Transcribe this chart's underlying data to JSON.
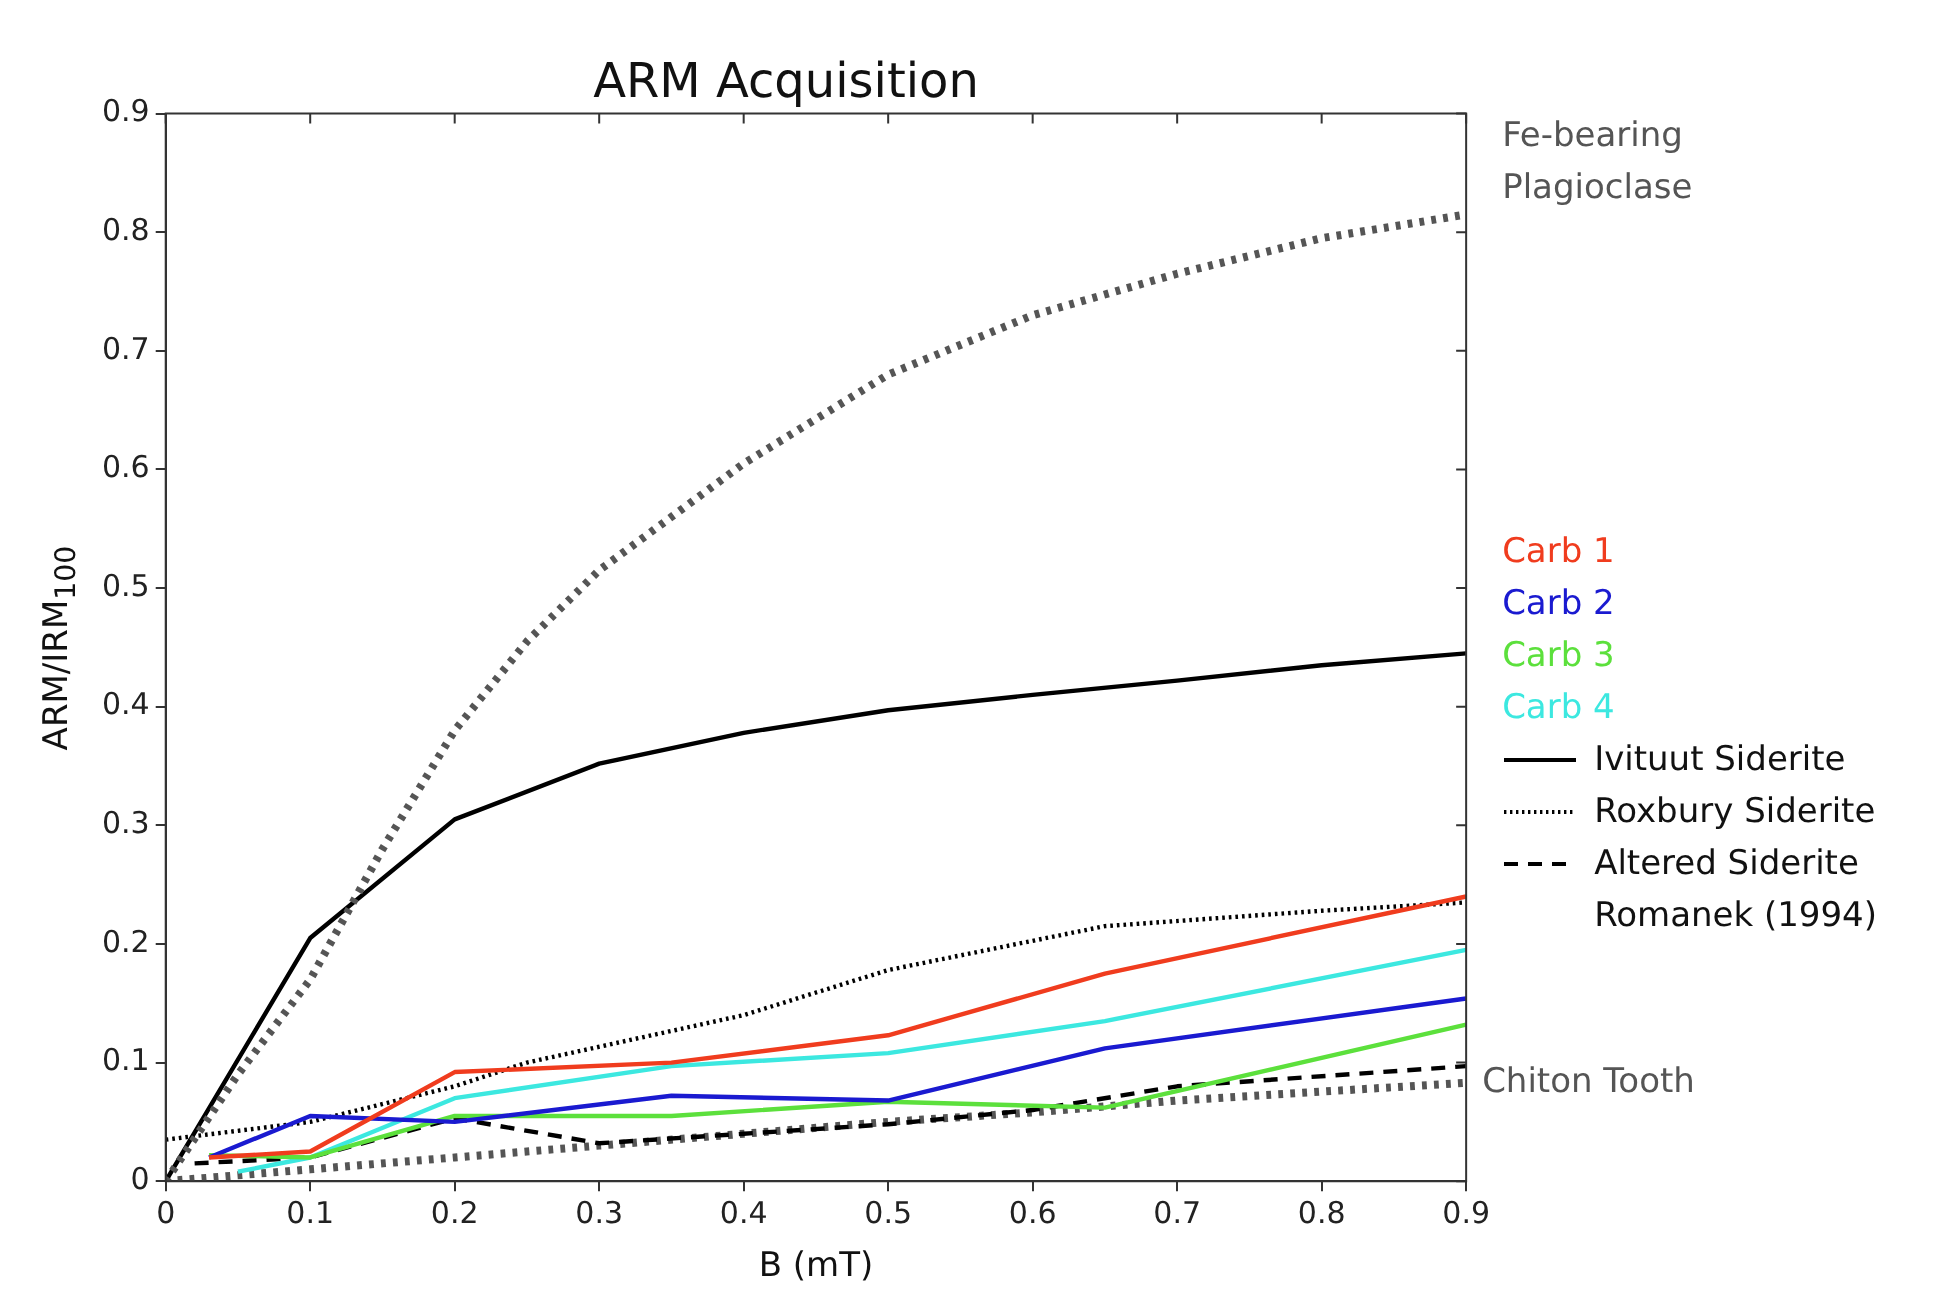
{
  "chart_data": {
    "type": "line",
    "title": "ARM Acquisition",
    "xlabel": "B (mT)",
    "ylabel": "ARM/IRM$_{100}$",
    "xlim": [
      0,
      0.9
    ],
    "ylim": [
      0,
      0.9
    ],
    "xticks": [
      0,
      0.1,
      0.2,
      0.3,
      0.4,
      0.5,
      0.6,
      0.7,
      0.8,
      0.9
    ],
    "yticks": [
      0,
      0.1,
      0.2,
      0.3,
      0.4,
      0.5,
      0.6,
      0.7,
      0.8,
      0.9
    ],
    "grid": false,
    "legend": "right",
    "marker": "none",
    "annotations": [
      "Romanek (1994)"
    ],
    "series": [
      {
        "name": "Fe-bearing Plagioclase",
        "color": "#555555",
        "line_style": "dotted",
        "x": [
          0,
          0.05,
          0.1,
          0.15,
          0.2,
          0.25,
          0.3,
          0.4,
          0.5,
          0.6,
          0.7,
          0.8,
          0.9
        ],
        "values": [
          0,
          0.09,
          0.17,
          0.28,
          0.38,
          0.455,
          0.515,
          0.605,
          0.68,
          0.73,
          0.765,
          0.795,
          0.815
        ]
      },
      {
        "name": "Carb 1",
        "color": "#f03c1e",
        "x": [
          0.03,
          0.1,
          0.2,
          0.35,
          0.5,
          0.65,
          0.9
        ],
        "values": [
          0.02,
          0.025,
          0.092,
          0.1,
          0.123,
          0.175,
          0.24
        ]
      },
      {
        "name": "Carb 2",
        "color": "#1a1ad0",
        "x": [
          0.03,
          0.1,
          0.2,
          0.35,
          0.5,
          0.65,
          0.9
        ],
        "values": [
          0.02,
          0.055,
          0.05,
          0.072,
          0.068,
          0.112,
          0.154
        ]
      },
      {
        "name": "Carb 3",
        "color": "#5ce03c",
        "x": [
          0.03,
          0.1,
          0.2,
          0.35,
          0.5,
          0.65,
          0.9
        ],
        "values": [
          0.022,
          0.02,
          0.055,
          0.055,
          0.067,
          0.062,
          0.132
        ]
      },
      {
        "name": "Carb 4",
        "color": "#3ce8e0",
        "x": [
          0.05,
          0.1,
          0.2,
          0.35,
          0.5,
          0.65,
          0.9
        ],
        "values": [
          0.008,
          0.02,
          0.07,
          0.097,
          0.108,
          0.135,
          0.195
        ]
      },
      {
        "name": "Ivituut Siderite",
        "color": "#000000",
        "line_style": "solid",
        "x": [
          0,
          0.1,
          0.2,
          0.3,
          0.4,
          0.5,
          0.6,
          0.7,
          0.8,
          0.9
        ],
        "values": [
          0,
          0.205,
          0.305,
          0.352,
          0.378,
          0.397,
          0.41,
          0.422,
          0.435,
          0.445
        ]
      },
      {
        "name": "Roxbury Siderite",
        "color": "#000000",
        "line_style": "dotted",
        "x": [
          0,
          0.1,
          0.2,
          0.25,
          0.4,
          0.5,
          0.65,
          0.8,
          0.9
        ],
        "values": [
          0.035,
          0.05,
          0.08,
          0.1,
          0.14,
          0.178,
          0.215,
          0.228,
          0.235
        ]
      },
      {
        "name": "Altered Siderite",
        "color": "#000000",
        "line_style": "dashed",
        "x": [
          0.02,
          0.1,
          0.2,
          0.3,
          0.4,
          0.5,
          0.6,
          0.7,
          0.9
        ],
        "values": [
          0.015,
          0.02,
          0.053,
          0.032,
          0.04,
          0.048,
          0.06,
          0.08,
          0.097
        ]
      },
      {
        "name": "Chiton Tooth",
        "color": "#555555",
        "line_style": "dotted",
        "x": [
          0,
          0.1,
          0.2,
          0.3,
          0.4,
          0.5,
          0.6,
          0.7,
          0.9
        ],
        "values": [
          0,
          0.01,
          0.02,
          0.03,
          0.04,
          0.05,
          0.058,
          0.068,
          0.083
        ]
      }
    ]
  }
}
